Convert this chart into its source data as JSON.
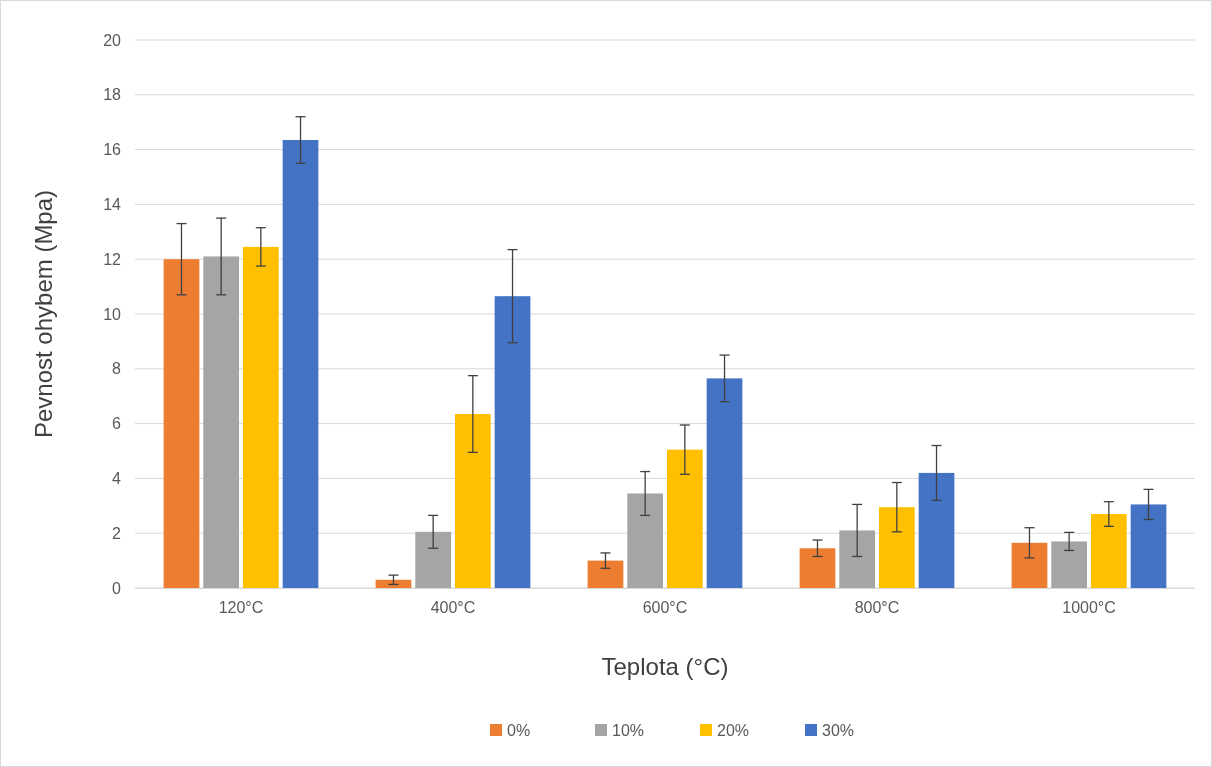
{
  "chart_data": {
    "type": "bar",
    "xlabel": "Teplota (°C)",
    "ylabel": "Pevnost ohybem (Mpa)",
    "categories": [
      "120°C",
      "400°C",
      "600°C",
      "800°C",
      "1000°C"
    ],
    "series": [
      {
        "name": "0%",
        "color": "#ed7d31",
        "values": [
          12.0,
          0.3,
          1.0,
          1.45,
          1.65
        ],
        "errors": [
          1.3,
          0.17,
          0.28,
          0.3,
          0.55
        ]
      },
      {
        "name": "10%",
        "color": "#a5a5a5",
        "values": [
          12.1,
          2.05,
          3.45,
          2.1,
          1.7
        ],
        "errors": [
          1.4,
          0.6,
          0.8,
          0.95,
          0.33
        ]
      },
      {
        "name": "20%",
        "color": "#ffc000",
        "values": [
          12.45,
          6.35,
          5.05,
          2.95,
          2.7
        ],
        "errors": [
          0.7,
          1.4,
          0.9,
          0.9,
          0.45
        ]
      },
      {
        "name": "30%",
        "color": "#4472c4",
        "values": [
          16.35,
          10.65,
          7.65,
          4.2,
          3.05
        ],
        "errors": [
          0.85,
          1.7,
          0.85,
          1.0,
          0.55
        ]
      }
    ],
    "ylim": [
      0,
      20
    ],
    "yticks": [
      0,
      2,
      4,
      6,
      8,
      10,
      12,
      14,
      16,
      18,
      20
    ],
    "grid": "y",
    "legend": "bottom"
  }
}
